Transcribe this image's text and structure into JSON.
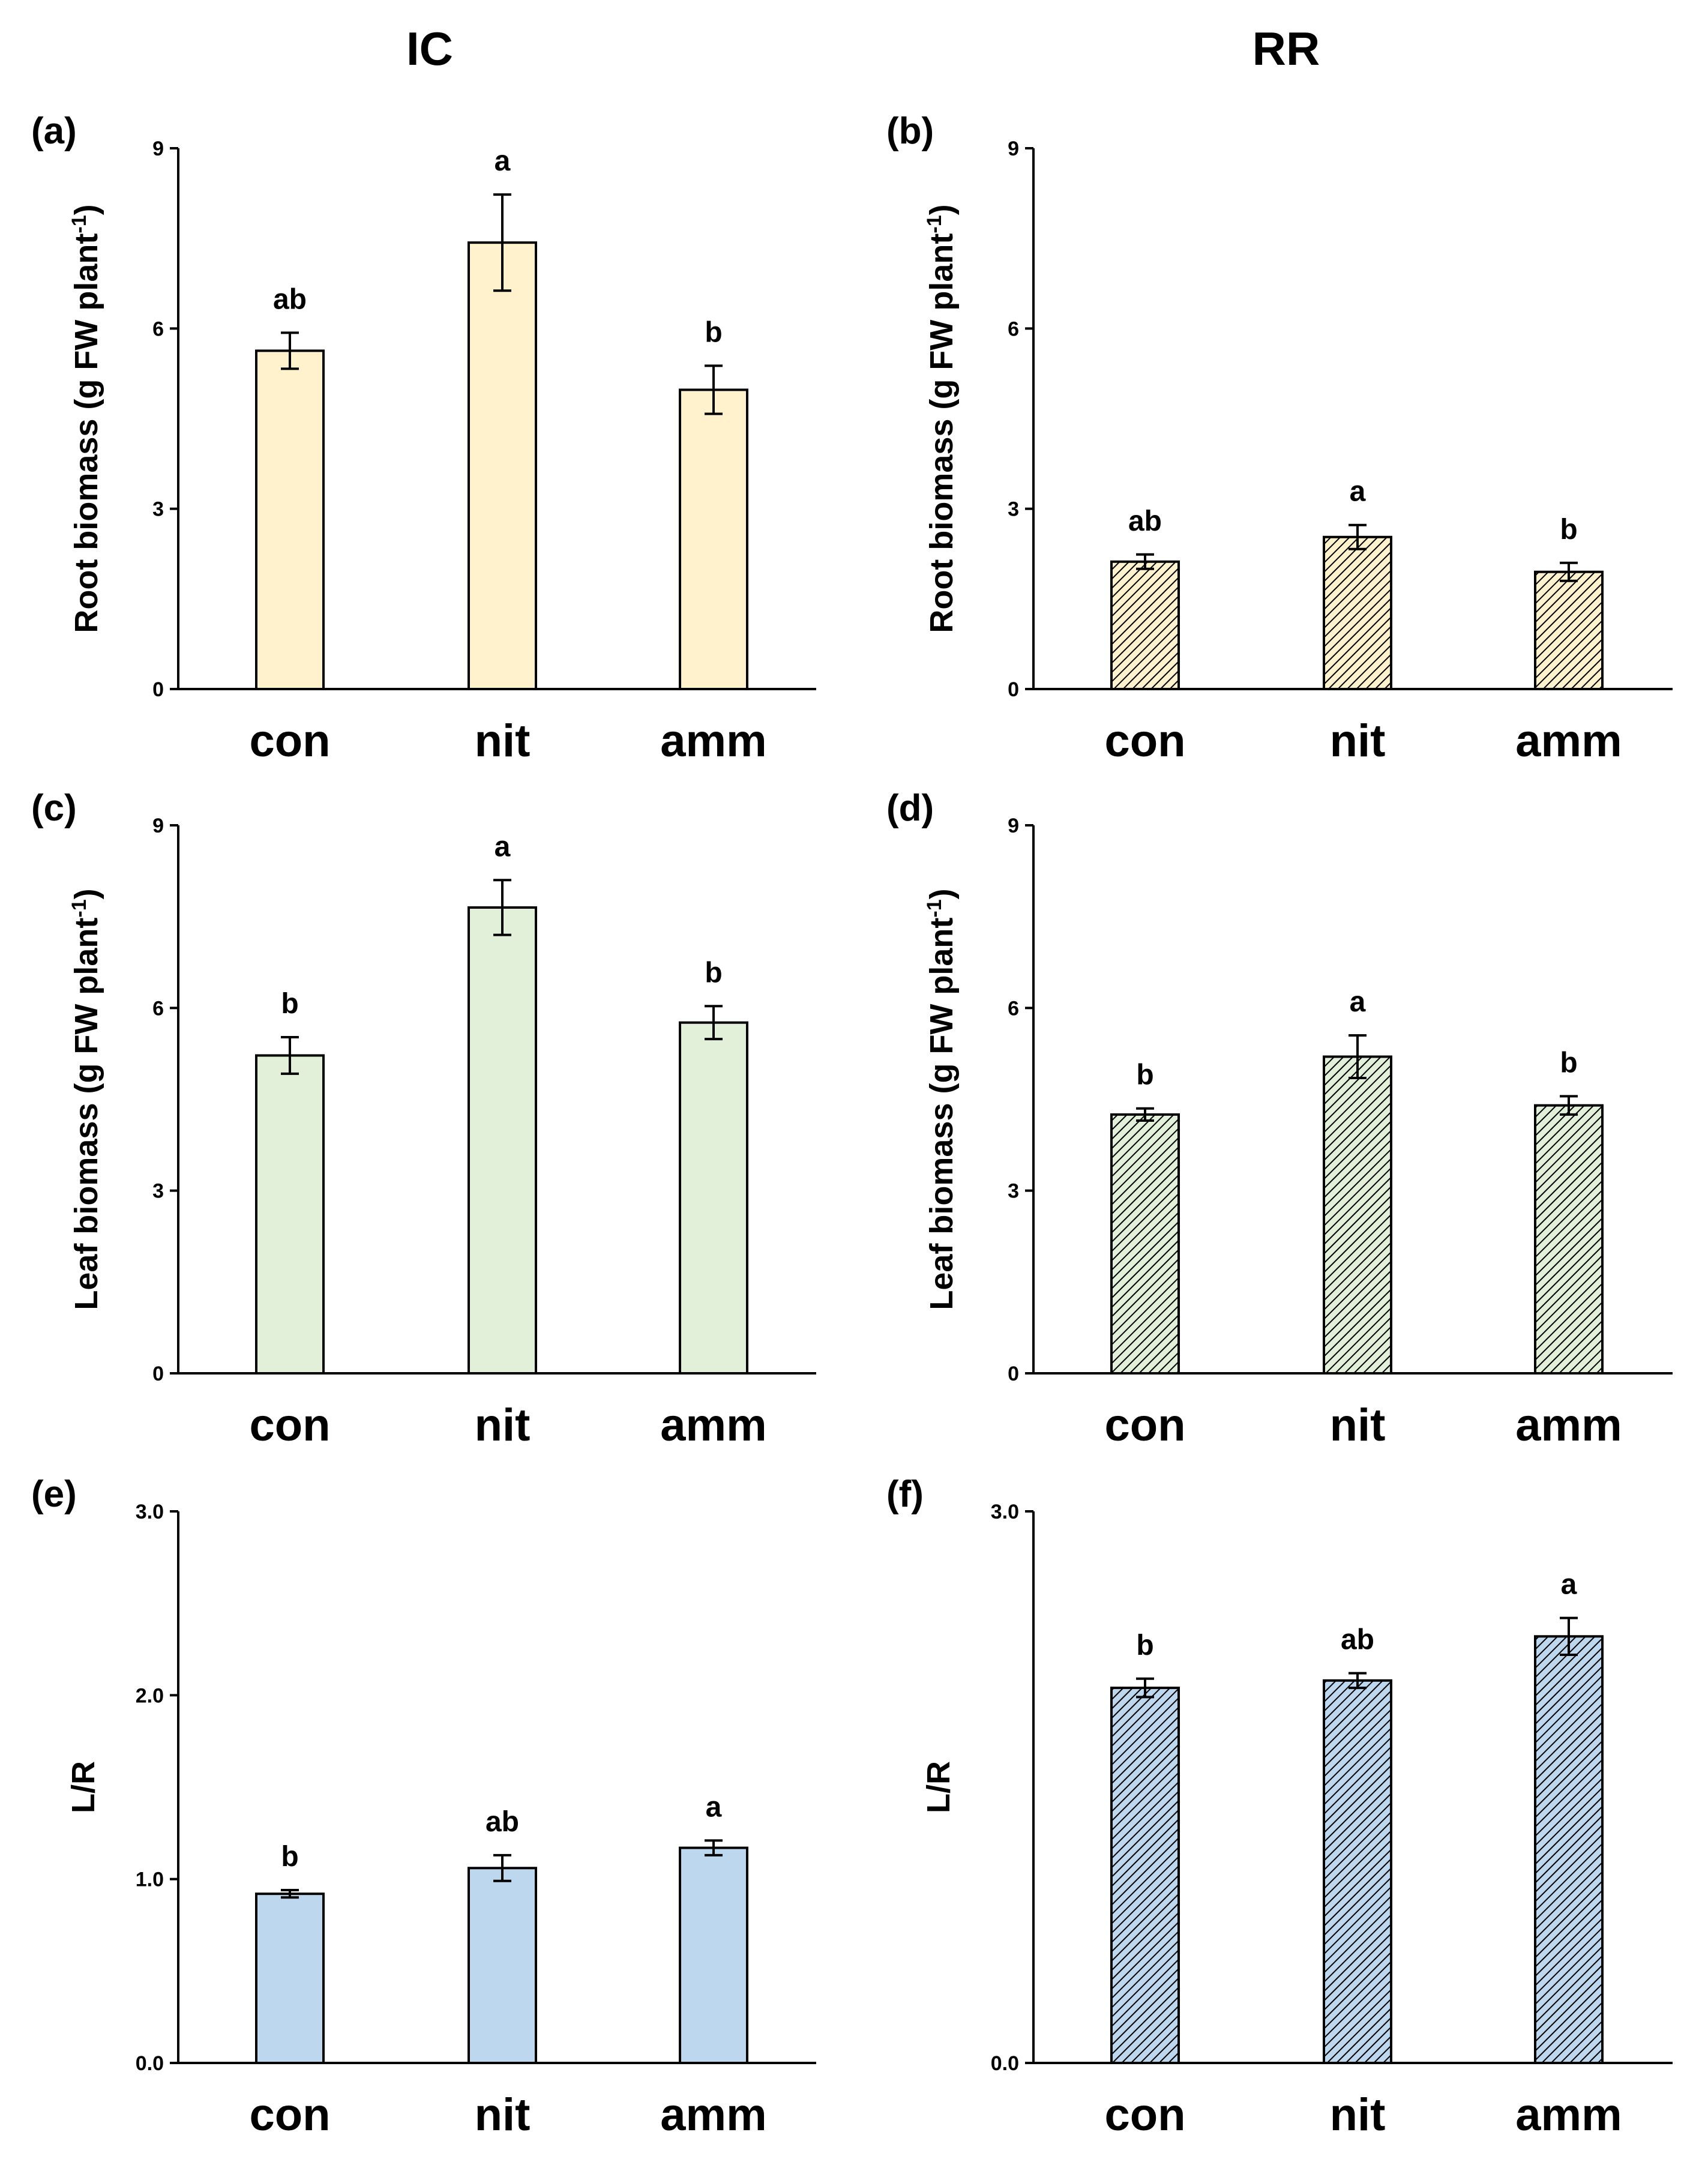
{
  "column_titles": [
    "IC",
    "RR"
  ],
  "chart_data": [
    {
      "type": "bar",
      "panel": "(a)",
      "column": "IC",
      "categories": [
        "con",
        "nit",
        "amm"
      ],
      "values": [
        5.63,
        7.43,
        4.98
      ],
      "errors": [
        0.3,
        0.8,
        0.4
      ],
      "letters": [
        "ab",
        "a",
        "b"
      ],
      "ylabel": "Root biomass (g FW plant",
      "ylabel_sup": "-1",
      "ylabel_end": ")",
      "ylim": [
        0,
        9
      ],
      "yticks": [
        0,
        3,
        6,
        9
      ],
      "ytick_labels": [
        "0",
        "3",
        "6",
        "9"
      ],
      "fill": "#fff2cc",
      "pattern": "solid"
    },
    {
      "type": "bar",
      "panel": "(b)",
      "column": "RR",
      "categories": [
        "con",
        "nit",
        "amm"
      ],
      "values": [
        2.12,
        2.53,
        1.95
      ],
      "errors": [
        0.12,
        0.2,
        0.15
      ],
      "letters": [
        "ab",
        "a",
        "b"
      ],
      "ylabel": "Root biomass (g FW plant",
      "ylabel_sup": "-1",
      "ylabel_end": ")",
      "ylim": [
        0,
        9
      ],
      "yticks": [
        0,
        3,
        6,
        9
      ],
      "ytick_labels": [
        "0",
        "3",
        "6",
        "9"
      ],
      "fill": "#fff2cc",
      "pattern": "hatched"
    },
    {
      "type": "bar",
      "panel": "(c)",
      "column": "IC",
      "categories": [
        "con",
        "nit",
        "amm"
      ],
      "values": [
        5.22,
        7.65,
        5.76
      ],
      "errors": [
        0.3,
        0.45,
        0.27
      ],
      "letters": [
        "b",
        "a",
        "b"
      ],
      "ylabel": "Leaf biomass (g FW plant",
      "ylabel_sup": "-1",
      "ylabel_end": ")",
      "ylim": [
        0,
        9
      ],
      "yticks": [
        0,
        3,
        6,
        9
      ],
      "ytick_labels": [
        "0",
        "3",
        "6",
        "9"
      ],
      "fill": "#e2f0d9",
      "pattern": "solid"
    },
    {
      "type": "bar",
      "panel": "(d)",
      "column": "RR",
      "categories": [
        "con",
        "nit",
        "amm"
      ],
      "values": [
        4.25,
        5.2,
        4.4
      ],
      "errors": [
        0.1,
        0.35,
        0.15
      ],
      "letters": [
        "b",
        "a",
        "b"
      ],
      "ylabel": "Leaf biomass (g FW plant",
      "ylabel_sup": "-1",
      "ylabel_end": ")",
      "ylim": [
        0,
        9
      ],
      "yticks": [
        0,
        3,
        6,
        9
      ],
      "ytick_labels": [
        "0",
        "3",
        "6",
        "9"
      ],
      "fill": "#e2f0d9",
      "pattern": "hatched"
    },
    {
      "type": "bar",
      "panel": "(e)",
      "column": "IC",
      "categories": [
        "con",
        "nit",
        "amm"
      ],
      "values": [
        0.92,
        1.06,
        1.17
      ],
      "errors": [
        0.02,
        0.07,
        0.04
      ],
      "letters": [
        "b",
        "ab",
        "a"
      ],
      "ylabel": "L/R",
      "ylabel_sup": "",
      "ylabel_end": "",
      "ylim": [
        0,
        3
      ],
      "yticks": [
        0,
        1,
        2,
        3
      ],
      "ytick_labels": [
        "0.0",
        "1.0",
        "2.0",
        "3.0"
      ],
      "fill": "#bdd7ee",
      "pattern": "solid"
    },
    {
      "type": "bar",
      "panel": "(f)",
      "column": "RR",
      "categories": [
        "con",
        "nit",
        "amm"
      ],
      "values": [
        2.04,
        2.08,
        2.32
      ],
      "errors": [
        0.05,
        0.04,
        0.1
      ],
      "letters": [
        "b",
        "ab",
        "a"
      ],
      "ylabel": "L/R",
      "ylabel_sup": "",
      "ylabel_end": "",
      "ylim": [
        0,
        3
      ],
      "yticks": [
        0,
        3
      ],
      "ytick_labels": [
        "0.0",
        "3.0"
      ],
      "fill": "#bdd7ee",
      "pattern": "hatched"
    }
  ]
}
